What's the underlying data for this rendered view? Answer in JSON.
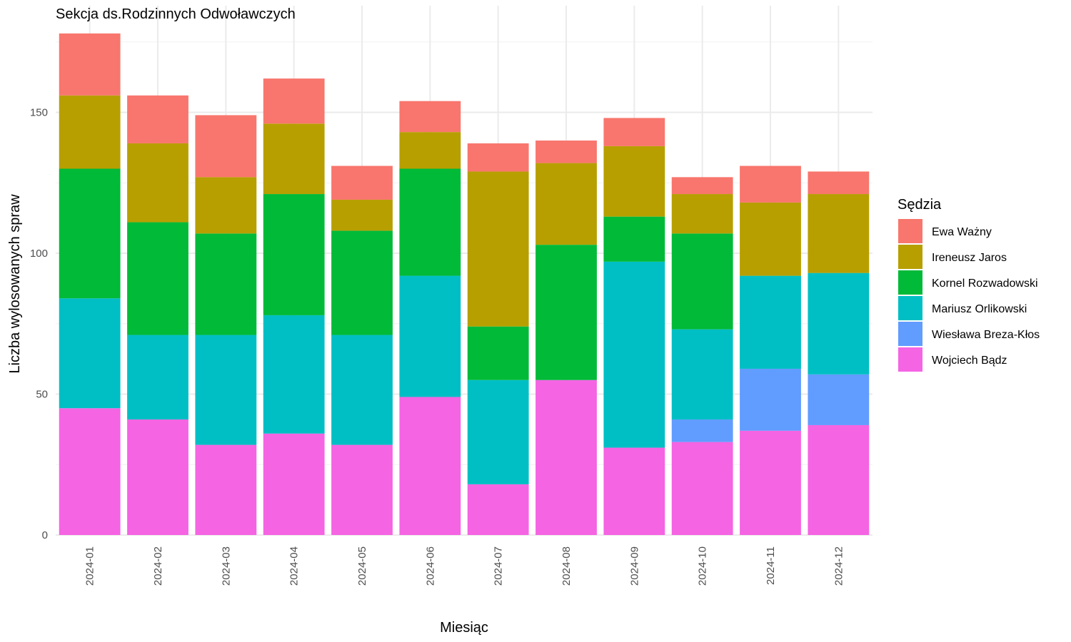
{
  "chart_data": {
    "type": "bar",
    "stacked": true,
    "title": "Sekcja ds.Rodzinnych Odwoławczych",
    "xlabel": "Miesiąc",
    "ylabel": "Liczba wylosowanych spraw",
    "ylim": [
      0,
      186
    ],
    "yticks": [
      0,
      50,
      100,
      150
    ],
    "grid": true,
    "legend_title": "Sędzia",
    "legend_position": "right",
    "categories": [
      "2024-01",
      "2024-02",
      "2024-03",
      "2024-04",
      "2024-05",
      "2024-06",
      "2024-07",
      "2024-08",
      "2024-09",
      "2024-10",
      "2024-11",
      "2024-12"
    ],
    "series": [
      {
        "name": "Wojciech Bądz",
        "color": "#F564E3",
        "values": [
          45,
          41,
          32,
          36,
          32,
          49,
          18,
          55,
          31,
          33,
          37,
          39
        ]
      },
      {
        "name": "Wiesława Breza-Kłos",
        "color": "#619CFF",
        "values": [
          0,
          0,
          0,
          0,
          0,
          0,
          0,
          0,
          0,
          8,
          22,
          18
        ]
      },
      {
        "name": "Mariusz Orlikowski",
        "color": "#00BFC4",
        "values": [
          39,
          30,
          39,
          42,
          39,
          43,
          37,
          0,
          66,
          32,
          33,
          36
        ]
      },
      {
        "name": "Kornel Rozwadowski",
        "color": "#00BA38",
        "values": [
          46,
          40,
          36,
          43,
          37,
          38,
          19,
          48,
          16,
          34,
          0,
          0
        ]
      },
      {
        "name": "Ireneusz Jaros",
        "color": "#B79F00",
        "values": [
          26,
          28,
          20,
          25,
          11,
          13,
          55,
          29,
          25,
          14,
          26,
          28
        ]
      },
      {
        "name": "Ewa Ważny",
        "color": "#F8766D",
        "values": [
          22,
          17,
          22,
          16,
          12,
          11,
          10,
          8,
          10,
          6,
          13,
          8
        ]
      }
    ],
    "legend_order": [
      "Ewa Ważny",
      "Ireneusz Jaros",
      "Kornel Rozwadowski",
      "Mariusz Orlikowski",
      "Wiesława Breza-Kłos",
      "Wojciech Bądz"
    ]
  }
}
